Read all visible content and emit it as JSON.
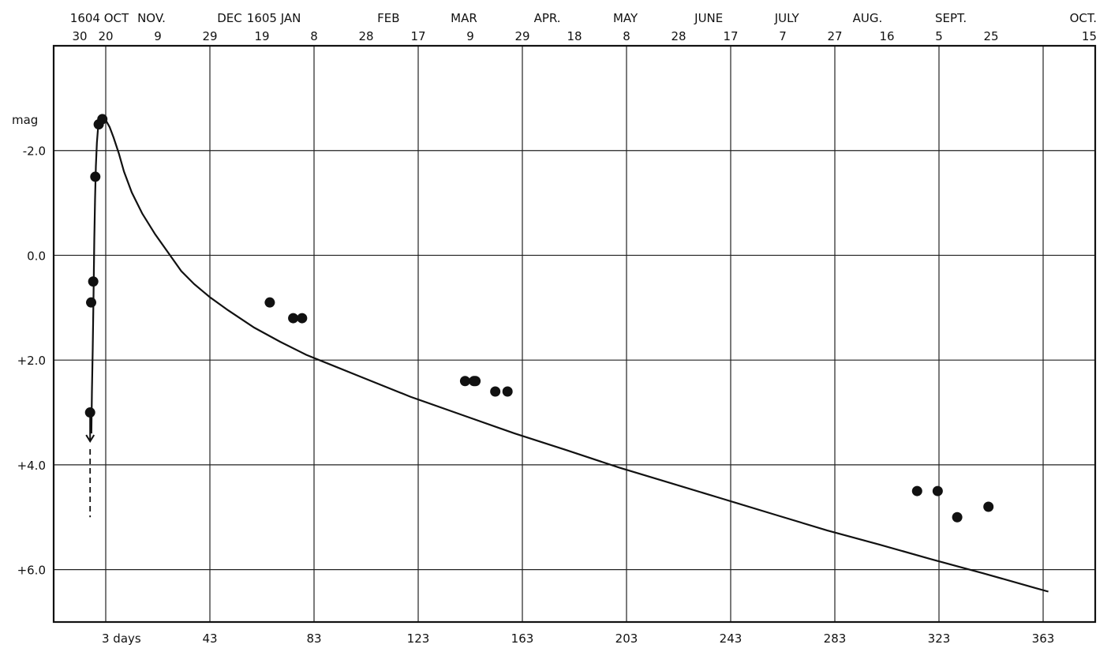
{
  "chart_data": {
    "type": "scatter",
    "ylabel": "mag",
    "y_axis": {
      "range": [
        7.0,
        -4.0
      ],
      "inverted": true,
      "ticks": [
        -2.0,
        0.0,
        2.0,
        4.0,
        6.0
      ],
      "tick_labels": [
        "-2.0",
        "0.0",
        "+2.0",
        "+4.0",
        "+6.0"
      ]
    },
    "x_axis_bottom": {
      "range": [
        -17,
        383
      ],
      "ticks": [
        3,
        43,
        83,
        123,
        163,
        203,
        243,
        283,
        323,
        363
      ],
      "tick_labels": [
        "3 days",
        "43",
        "83",
        "123",
        "163",
        "203",
        "243",
        "283",
        "323",
        "363"
      ]
    },
    "x_axis_top": {
      "months": [
        {
          "x": 3,
          "label": "1604 OCT"
        },
        {
          "x": 23,
          "label": "NOV."
        },
        {
          "x": 53,
          "label": "DEC"
        },
        {
          "x": 70,
          "label": "1605 JAN"
        },
        {
          "x": 114,
          "label": "FEB"
        },
        {
          "x": 143,
          "label": "MAR"
        },
        {
          "x": 175,
          "label": "APR."
        },
        {
          "x": 205,
          "label": "MAY"
        },
        {
          "x": 237,
          "label": "JUNE"
        },
        {
          "x": 267,
          "label": "JULY"
        },
        {
          "x": 298,
          "label": "AUG."
        },
        {
          "x": 330,
          "label": "SEPT."
        },
        {
          "x": 360,
          "label": "OCT."
        }
      ],
      "days": [
        {
          "x": -7,
          "label": "30"
        },
        {
          "x": 3,
          "label": "20"
        },
        {
          "x": 23,
          "label": "9"
        },
        {
          "x": 43,
          "label": "29"
        },
        {
          "x": 63,
          "label": "19"
        },
        {
          "x": 83,
          "label": "8"
        },
        {
          "x": 103,
          "label": "28"
        },
        {
          "x": 123,
          "label": "17"
        },
        {
          "x": 143,
          "label": "9"
        },
        {
          "x": 163,
          "label": "29"
        },
        {
          "x": 183,
          "label": "18"
        },
        {
          "x": 203,
          "label": "8"
        },
        {
          "x": 223,
          "label": "28"
        },
        {
          "x": 243,
          "label": "17"
        },
        {
          "x": 263,
          "label": "7"
        },
        {
          "x": 283,
          "label": "27"
        },
        {
          "x": 303,
          "label": "16"
        },
        {
          "x": 323,
          "label": "5"
        },
        {
          "x": 343,
          "label": "25"
        },
        {
          "x": 363,
          "label": "15"
        }
      ]
    },
    "grid": true,
    "series": [
      {
        "kind": "points",
        "x": [
          -3.0,
          -2.6,
          -1.8,
          -1.0,
          0.3,
          1.7,
          66.0,
          75.0,
          78.4,
          141.0,
          144.4,
          145.0,
          152.6,
          157.3,
          314.6,
          322.5,
          330.0,
          342.0
        ],
        "y": [
          3.0,
          0.9,
          0.5,
          -1.5,
          -2.5,
          -2.6,
          0.9,
          1.2,
          1.2,
          2.4,
          2.4,
          2.4,
          2.6,
          2.6,
          4.5,
          4.5,
          5.0,
          4.8
        ]
      },
      {
        "kind": "fit-curve",
        "x": [
          -2.5,
          -2.3,
          -2.0,
          -1.7,
          -1.4,
          -1.1,
          -0.8,
          -0.4,
          0.0,
          0.5,
          1.1,
          1.8,
          3.0,
          4.5,
          6.0,
          8.0,
          10.0,
          13.0,
          17.0,
          22.0,
          27.0,
          32.0,
          37.0,
          43.0,
          50.0,
          60.0,
          70.0,
          80.0,
          90.0,
          100.0,
          120.0,
          140.0,
          160.0,
          180.0,
          200.0,
          220.0,
          240.0,
          260.0,
          280.0,
          300.0,
          320.0,
          340.0,
          360.0,
          365.0
        ],
        "y": [
          3.4,
          2.6,
          1.8,
          0.8,
          -0.3,
          -1.1,
          -1.7,
          -2.15,
          -2.4,
          -2.55,
          -2.6,
          -2.62,
          -2.58,
          -2.45,
          -2.25,
          -1.95,
          -1.6,
          -1.2,
          -0.8,
          -0.4,
          -0.05,
          0.3,
          0.55,
          0.8,
          1.05,
          1.38,
          1.65,
          1.9,
          2.1,
          2.3,
          2.7,
          3.05,
          3.4,
          3.72,
          4.05,
          4.35,
          4.65,
          4.95,
          5.25,
          5.52,
          5.8,
          6.07,
          6.35,
          6.42
        ]
      }
    ],
    "annotations": [
      {
        "type": "upper-limit-arrow",
        "x": -3.0,
        "from_y": 3.0,
        "to_y": 3.4
      },
      {
        "type": "dashed-line",
        "x": -3.0,
        "from_y": 3.7,
        "to_y": 5.0
      }
    ]
  }
}
